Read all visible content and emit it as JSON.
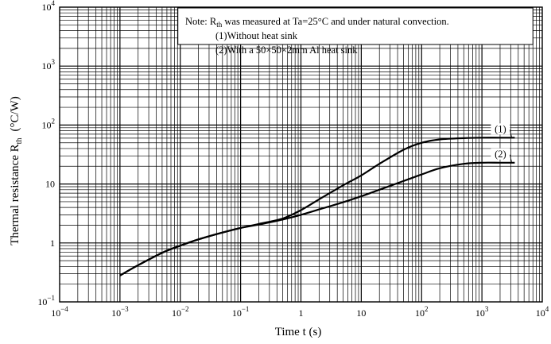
{
  "chart_data": {
    "type": "line",
    "x_scale": "log",
    "y_scale": "log",
    "xlim": [
      0.0001,
      10000
    ],
    "ylim": [
      0.1,
      10000
    ],
    "xlabel": "Time  t  (s)",
    "ylabel_main": "Thermal resistance  R",
    "ylabel_sub": "th",
    "ylabel_unit": "(°C/W)",
    "grid": true,
    "x_ticks": [
      {
        "value": 0.0001,
        "base": "10",
        "exp": "−4"
      },
      {
        "value": 0.001,
        "base": "10",
        "exp": "−3"
      },
      {
        "value": 0.01,
        "base": "10",
        "exp": "−2"
      },
      {
        "value": 0.1,
        "base": "10",
        "exp": "−1"
      },
      {
        "value": 1,
        "base": "1",
        "exp": ""
      },
      {
        "value": 10,
        "base": "10",
        "exp": ""
      },
      {
        "value": 100,
        "base": "10",
        "exp": "2"
      },
      {
        "value": 1000,
        "base": "10",
        "exp": "3"
      },
      {
        "value": 10000,
        "base": "10",
        "exp": "4"
      }
    ],
    "y_ticks": [
      {
        "value": 0.1,
        "base": "10",
        "exp": "−1"
      },
      {
        "value": 1,
        "base": "1",
        "exp": ""
      },
      {
        "value": 10,
        "base": "10",
        "exp": ""
      },
      {
        "value": 100,
        "base": "10",
        "exp": "2"
      },
      {
        "value": 1000,
        "base": "10",
        "exp": "3"
      },
      {
        "value": 10000,
        "base": "10",
        "exp": "4"
      }
    ],
    "series": [
      {
        "name": "(1)",
        "points": [
          [
            0.001,
            0.28
          ],
          [
            0.002,
            0.42
          ],
          [
            0.005,
            0.68
          ],
          [
            0.01,
            0.9
          ],
          [
            0.02,
            1.15
          ],
          [
            0.05,
            1.5
          ],
          [
            0.1,
            1.8
          ],
          [
            0.2,
            2.1
          ],
          [
            0.5,
            2.6
          ],
          [
            1,
            3.6
          ],
          [
            2,
            5.5
          ],
          [
            5,
            9.5
          ],
          [
            10,
            14
          ],
          [
            20,
            22
          ],
          [
            50,
            38
          ],
          [
            100,
            50
          ],
          [
            200,
            57
          ],
          [
            500,
            60
          ],
          [
            1000,
            61
          ],
          [
            2000,
            61
          ],
          [
            3500,
            61
          ]
        ]
      },
      {
        "name": "(2)",
        "points": [
          [
            0.001,
            0.28
          ],
          [
            0.002,
            0.42
          ],
          [
            0.005,
            0.68
          ],
          [
            0.01,
            0.9
          ],
          [
            0.02,
            1.15
          ],
          [
            0.05,
            1.5
          ],
          [
            0.1,
            1.8
          ],
          [
            0.2,
            2.05
          ],
          [
            0.5,
            2.5
          ],
          [
            1,
            3.0
          ],
          [
            2,
            3.7
          ],
          [
            5,
            4.9
          ],
          [
            10,
            6.2
          ],
          [
            20,
            8.0
          ],
          [
            50,
            11.2
          ],
          [
            100,
            14.5
          ],
          [
            200,
            18.5
          ],
          [
            500,
            22
          ],
          [
            1000,
            23
          ],
          [
            2000,
            23
          ],
          [
            3500,
            23
          ]
        ]
      }
    ],
    "note": {
      "prefix": "Note: R",
      "sub": "th",
      "rest": " was measured at Ta=25°C and under natural convection.",
      "line2": "(1)Without heat sink",
      "line3": "(2)With a 50×50×2mm Al heat sink"
    }
  }
}
